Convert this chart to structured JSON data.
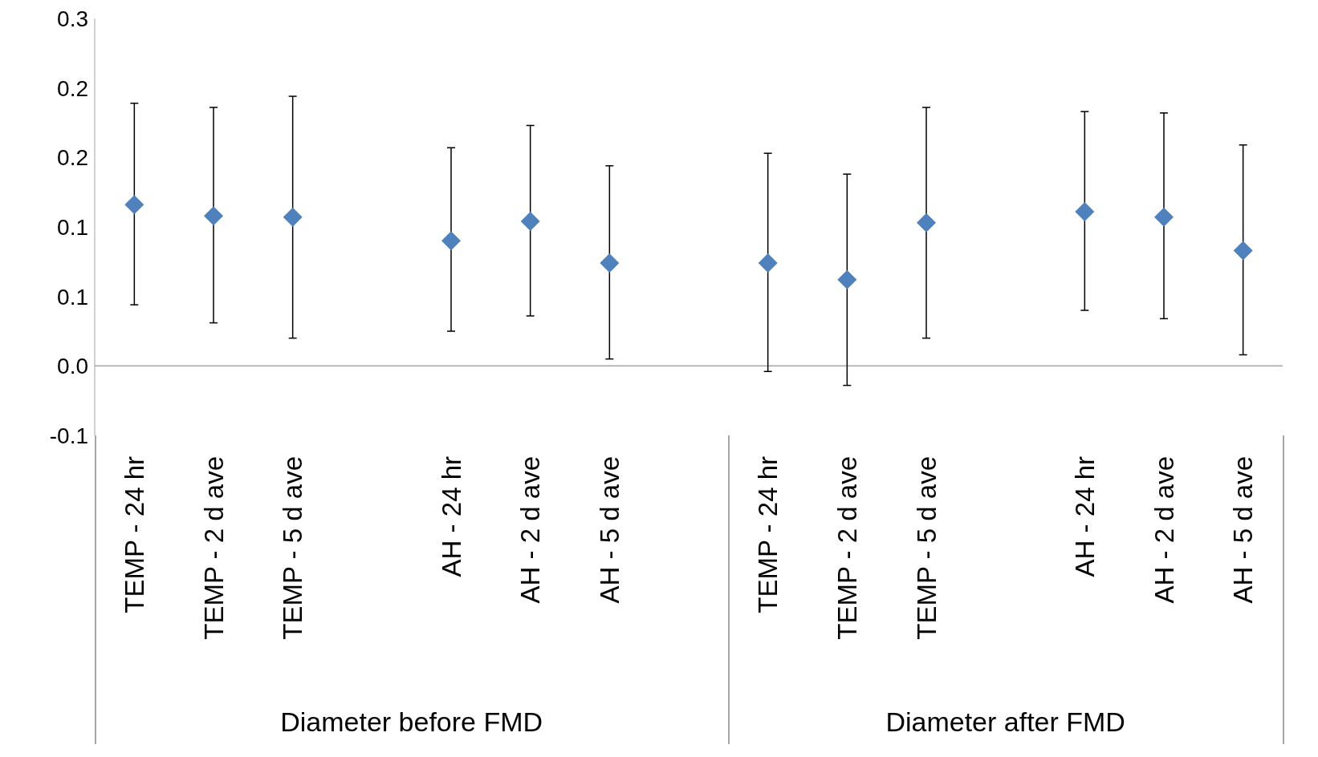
{
  "chart_data": {
    "type": "scatter",
    "categories": [
      "TEMP - 24 hr",
      "TEMP - 2 d ave",
      "TEMP - 5 d ave",
      null,
      "AH - 24 hr",
      "AH - 2 d ave",
      "AH - 5 d ave",
      null,
      "TEMP - 24 hr",
      "TEMP - 2 d ave",
      "TEMP - 5 d ave",
      null,
      "AH - 24 hr",
      "AH - 2 d ave",
      "AH - 5 d ave"
    ],
    "series": [
      {
        "color": "#4f81bd",
        "values": [
          0.116,
          0.108,
          0.107,
          null,
          0.09,
          0.104,
          0.074,
          null,
          0.074,
          0.062,
          0.103,
          null,
          0.111,
          0.107,
          0.083
        ],
        "errors": [
          [
            0.044,
            0.189
          ],
          [
            0.031,
            0.186
          ],
          [
            0.02,
            0.194
          ],
          null,
          [
            0.025,
            0.157
          ],
          [
            0.036,
            0.173
          ],
          [
            0.005,
            0.144
          ],
          null,
          [
            -0.004,
            0.153
          ],
          [
            -0.014,
            0.138
          ],
          [
            0.02,
            0.186
          ],
          null,
          [
            0.04,
            0.183
          ],
          [
            0.034,
            0.182
          ],
          [
            0.008,
            0.159
          ]
        ]
      }
    ],
    "marker": "diamond",
    "ylim": [
      -0.05,
      0.25
    ],
    "yticks": [
      {
        "value": -0.05,
        "label": "-0.1"
      },
      {
        "value": 0,
        "label": "0.0"
      },
      {
        "value": 0.05,
        "label": "0.1"
      },
      {
        "value": 0.1,
        "label": "0.1"
      },
      {
        "value": 0.15,
        "label": "0.2"
      },
      {
        "value": 0.2,
        "label": "0.2"
      },
      {
        "value": 0.25,
        "label": "0.3"
      }
    ],
    "ref_lines": [
      {
        "axis": "y",
        "value": 0,
        "color": "#a6a6a6"
      }
    ],
    "annotations": [
      "Diameter before FMD",
      "Diameter after FMD"
    ],
    "grid": false,
    "legend": false
  }
}
